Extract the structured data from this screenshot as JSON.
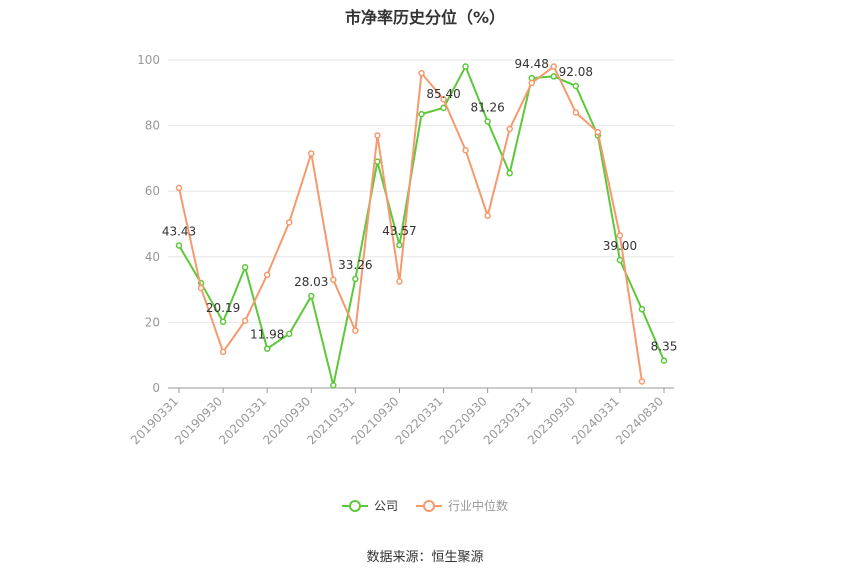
{
  "chart_data": {
    "type": "line",
    "title": "市净率历史分位（%）",
    "source": "数据来源：恒生聚源",
    "ylim": [
      0,
      100
    ],
    "yticks": [
      "0",
      "20",
      "40",
      "60",
      "80",
      "100"
    ],
    "xtick_labels": [
      "20190331",
      "20190930",
      "20200331",
      "20200930",
      "20210331",
      "20210930",
      "20220331",
      "20220930",
      "20230331",
      "20230930",
      "20240331",
      "20240830"
    ],
    "grid": true,
    "legend_position": "bottom",
    "series": [
      {
        "name": "公司",
        "color": "#5cc83a",
        "values": [
          43.43,
          32.0,
          20.19,
          36.8,
          11.98,
          16.5,
          28.03,
          0.8,
          33.26,
          69.0,
          43.57,
          83.5,
          85.4,
          98.0,
          81.26,
          65.5,
          94.48,
          95.0,
          92.08,
          77.0,
          39.0,
          24.0,
          8.35
        ],
        "labels": [
          "43.43",
          "",
          "20.19",
          "",
          "11.98",
          "",
          "28.03",
          "",
          "33.26",
          "",
          "43.57",
          "",
          "85.40",
          "",
          "81.26",
          "",
          "94.48",
          "",
          "92.08",
          "",
          "39.00",
          "",
          "8.35"
        ]
      },
      {
        "name": "行业中位数",
        "color": "#f59a6e",
        "values": [
          61.0,
          30.5,
          11.0,
          20.5,
          34.5,
          50.5,
          71.5,
          33.0,
          17.5,
          77.0,
          32.5,
          96.0,
          88.0,
          72.5,
          52.5,
          79.0,
          93.0,
          98.0,
          84.0,
          78.0,
          46.5,
          2.0
        ],
        "labels": []
      }
    ]
  }
}
